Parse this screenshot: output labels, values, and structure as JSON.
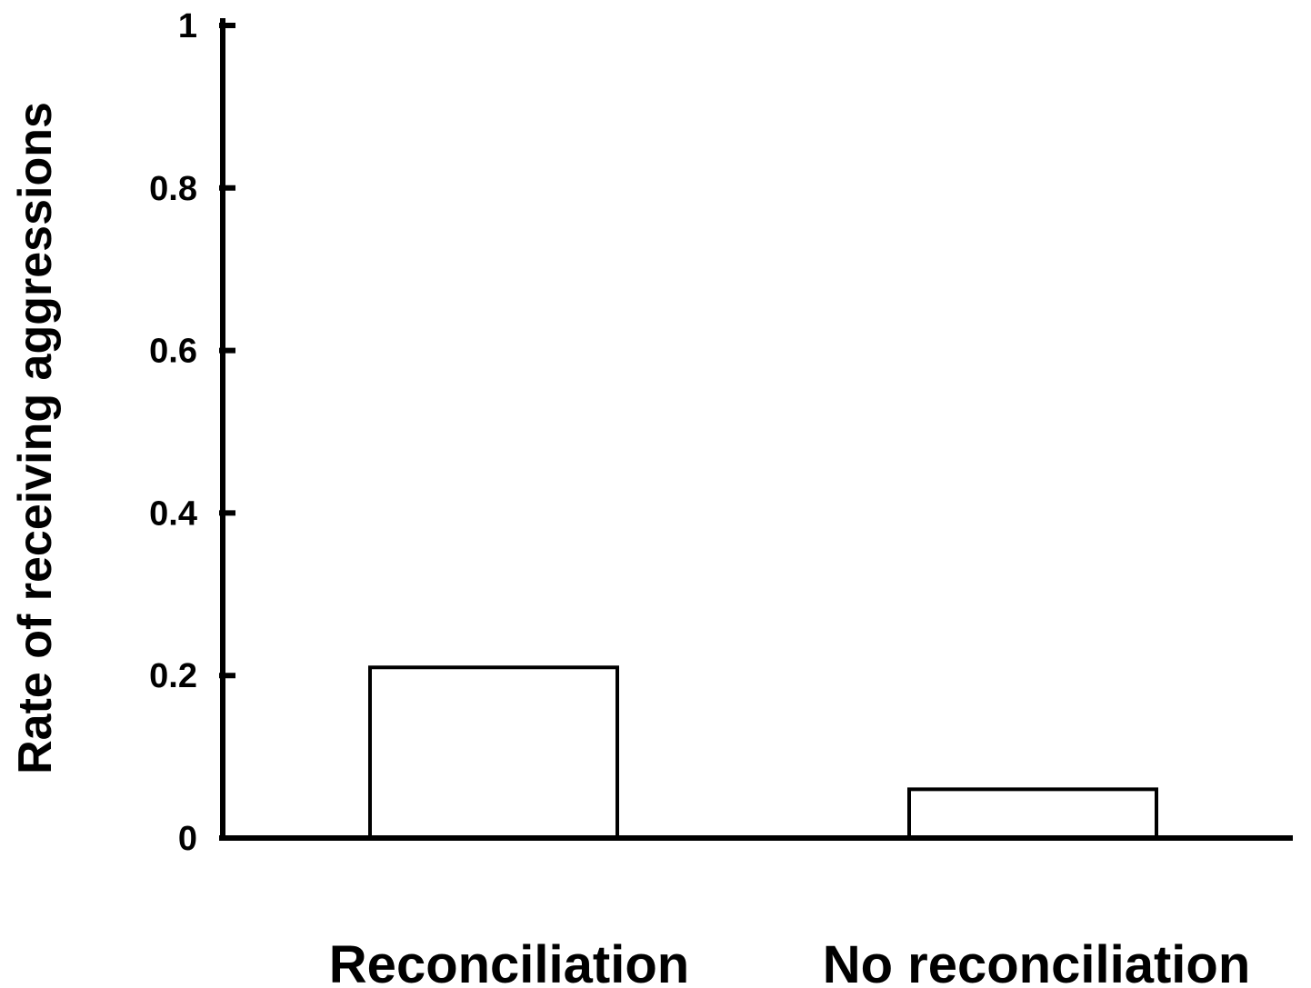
{
  "chart_data": {
    "type": "bar",
    "title": "",
    "xlabel": "",
    "ylabel": "Rate of receiving aggressions",
    "categories": [
      "Reconciliation",
      "No reconciliation"
    ],
    "values": [
      0.21,
      0.06
    ],
    "ylim": [
      0,
      1
    ],
    "yticks": [
      0,
      0.2,
      0.4,
      0.6,
      0.8,
      1
    ],
    "ytick_labels": [
      "0",
      "0.2",
      "0.4",
      "0.6",
      "0.8",
      "1"
    ],
    "grid": false,
    "legend": "none",
    "colors": {
      "bar_fill": "#ffffff",
      "bar_stroke": "#000000",
      "axis": "#000000"
    }
  }
}
